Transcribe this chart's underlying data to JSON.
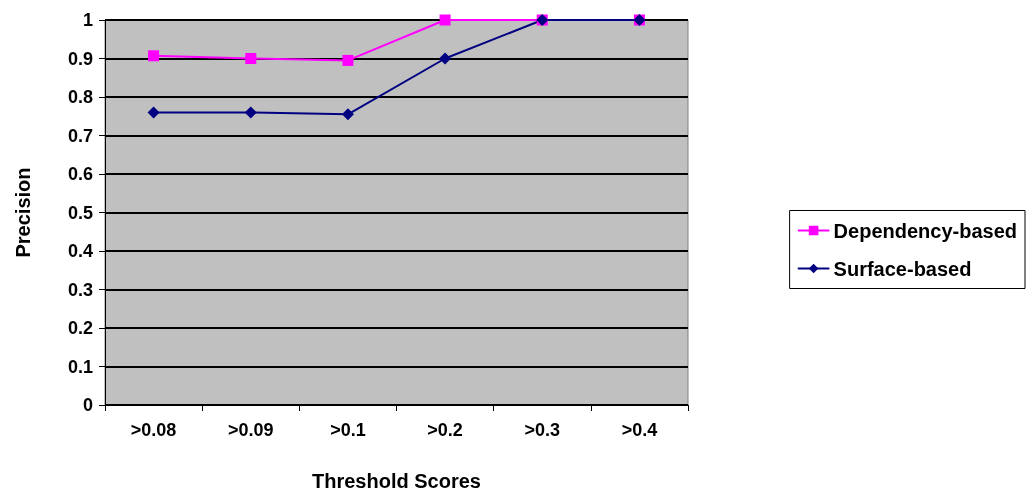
{
  "chart_data": {
    "type": "line",
    "xlabel": "Threshold Scores",
    "ylabel": "Precision",
    "categories": [
      ">0.08",
      ">0.09",
      ">0.1",
      ">0.2",
      ">0.3",
      ">0.4"
    ],
    "series": [
      {
        "name": "Dependency-based",
        "color": "#ff00ff",
        "marker": "square",
        "values": [
          0.907,
          0.9,
          0.895,
          1,
          1,
          1
        ]
      },
      {
        "name": "Surface-based",
        "color": "#000080",
        "marker": "diamond",
        "values": [
          0.76,
          0.76,
          0.755,
          0.9,
          1,
          1
        ]
      }
    ],
    "ylim": [
      0,
      1
    ],
    "yticks": [
      0,
      0.1,
      0.2,
      0.3,
      0.4,
      0.5,
      0.6,
      0.7,
      0.8,
      0.9,
      1
    ],
    "grid": "y",
    "legend": "right",
    "line_style": "solid"
  }
}
